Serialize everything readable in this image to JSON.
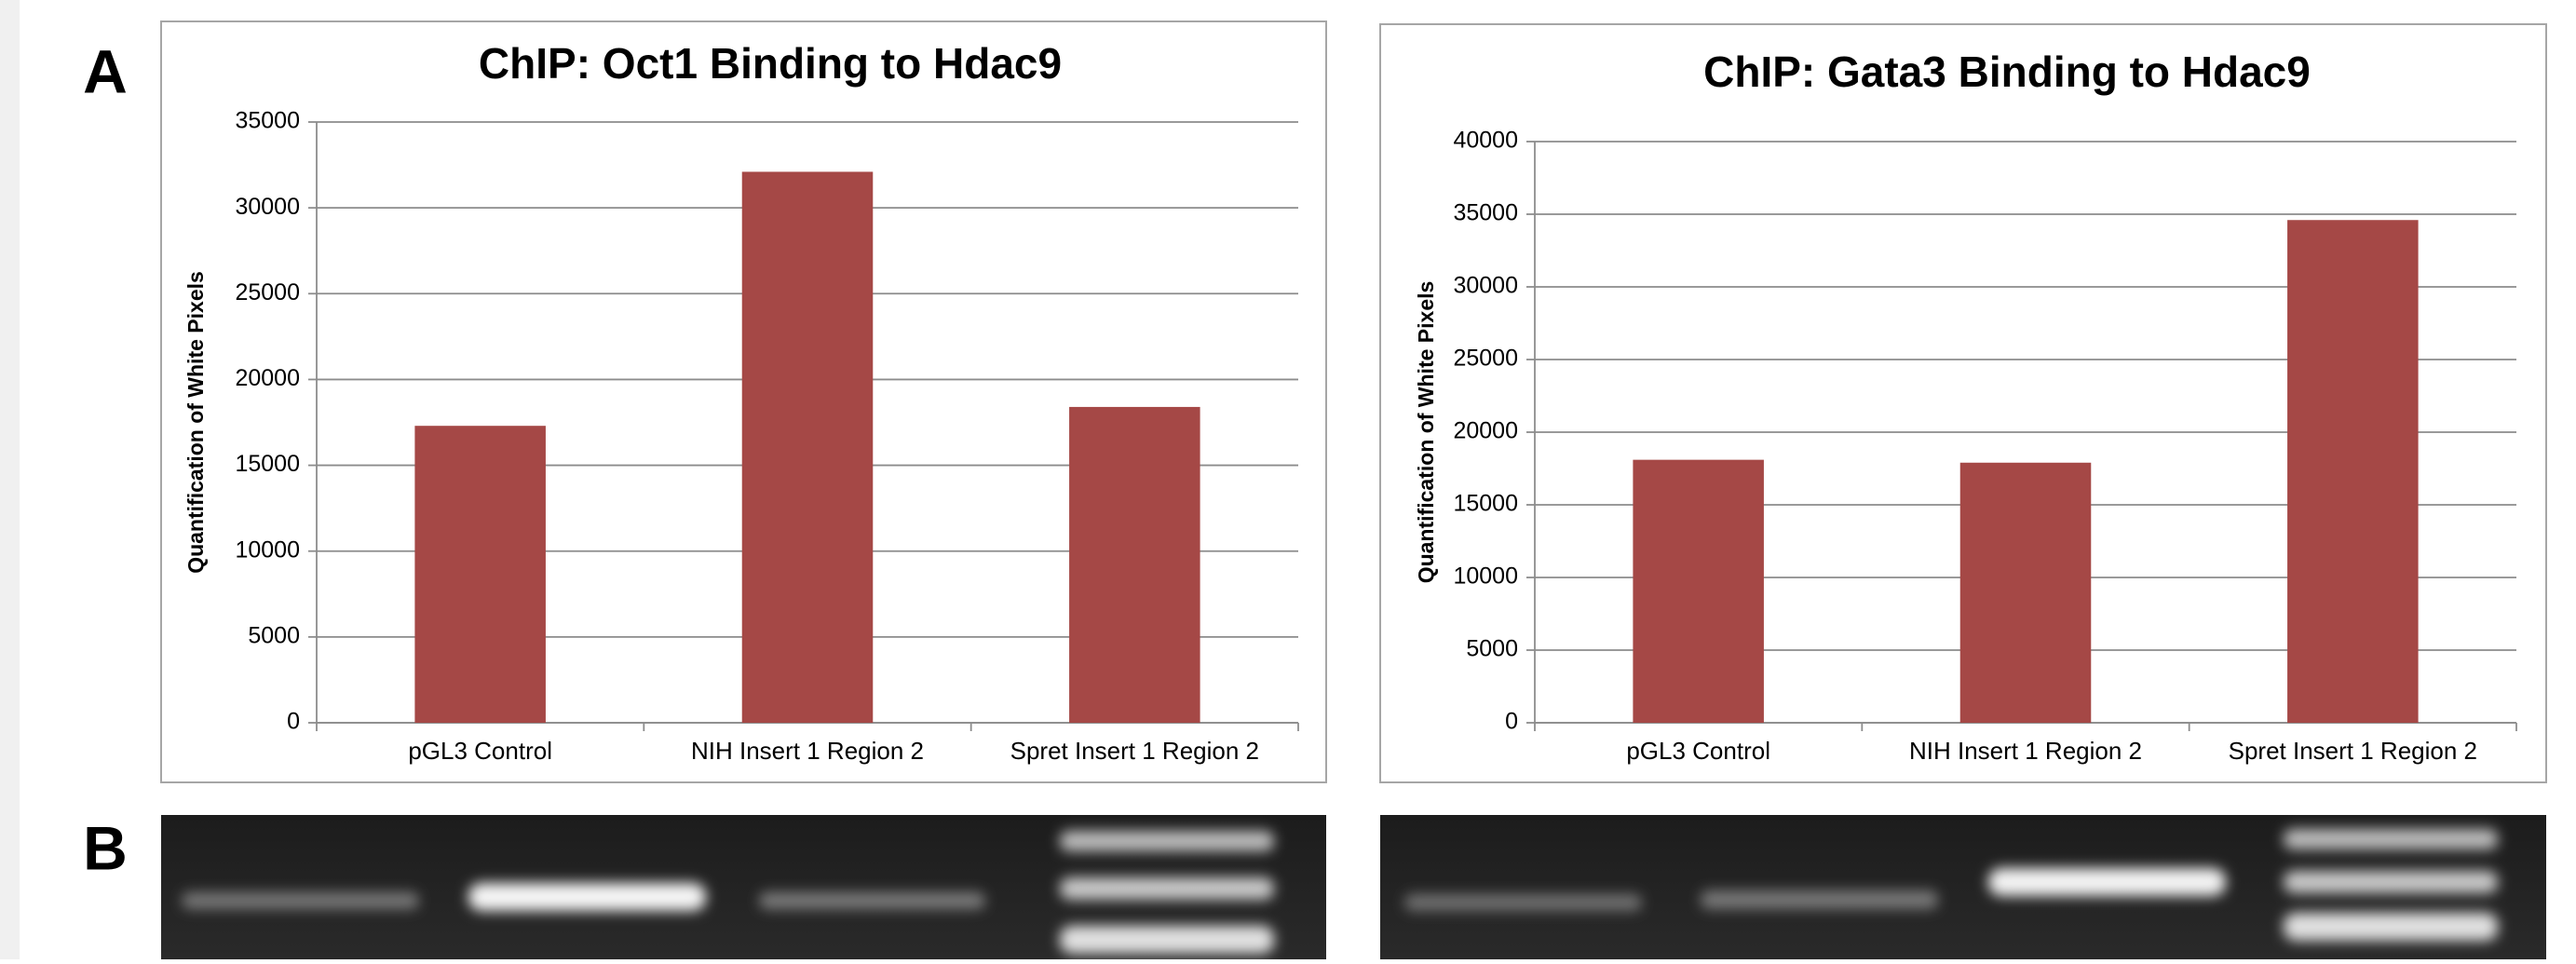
{
  "panel_labels": [
    "A",
    "B"
  ],
  "chart_data": [
    {
      "type": "bar",
      "title": "ChIP: Oct1 Binding to Hdac9",
      "y_label": "Quantification of White Pixels",
      "categories": [
        "pGL3 Control",
        "NIH Insert 1 Region 2",
        "Spret Insert 1 Region 2"
      ],
      "values": [
        17300,
        32100,
        18400
      ],
      "color": "#a54846",
      "ylim": [
        0,
        35000
      ],
      "yticks": [
        0,
        5000,
        10000,
        15000,
        20000,
        25000,
        30000,
        35000
      ],
      "grid": true
    },
    {
      "type": "bar",
      "title": "ChIP: Gata3 Binding to Hdac9",
      "y_label": "Quantification of White Pixels",
      "categories": [
        "pGL3 Control",
        "NIH Insert 1 Region 2",
        "Spret Insert 1 Region 2"
      ],
      "values": [
        18100,
        17900,
        34600
      ],
      "color": "#a54846",
      "ylim": [
        0,
        40000
      ],
      "yticks": [
        0,
        5000,
        10000,
        15000,
        20000,
        25000,
        30000,
        35000,
        40000
      ],
      "grid": true
    }
  ]
}
